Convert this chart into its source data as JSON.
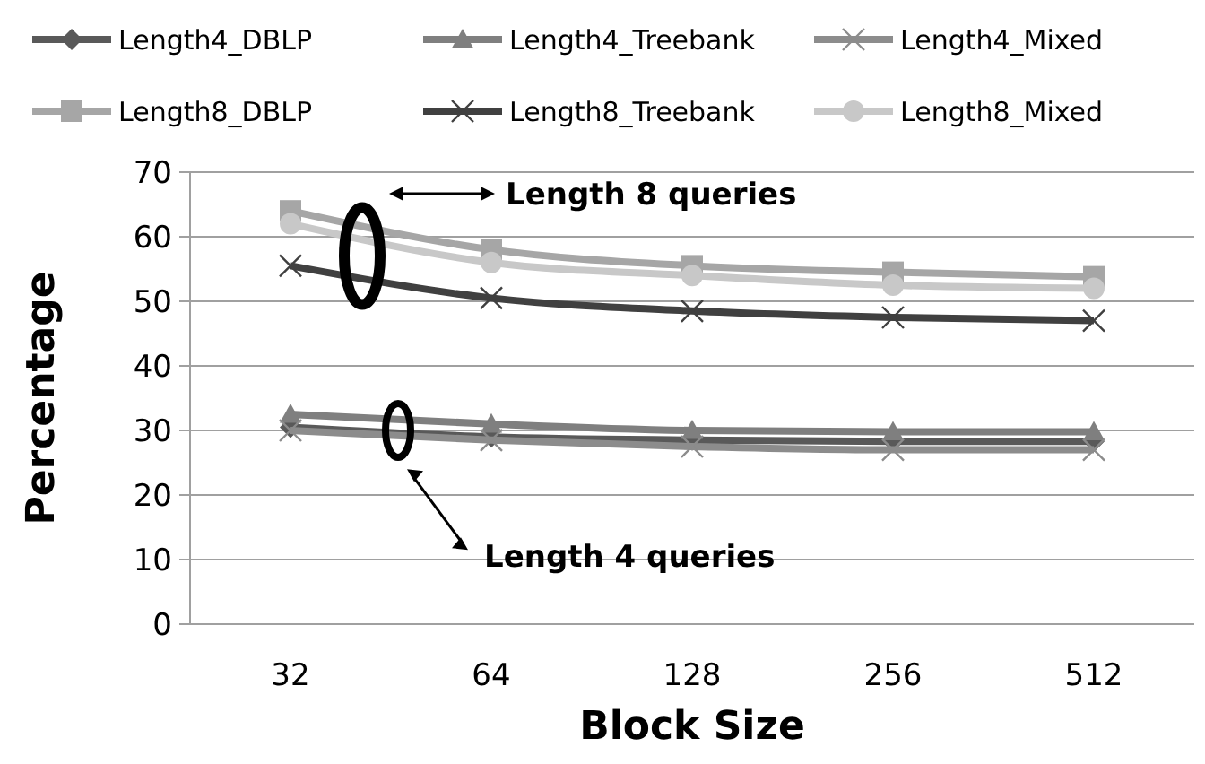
{
  "chart_data": {
    "type": "line",
    "xlabel": "Block Size",
    "ylabel": "Percentage",
    "categories": [
      "32",
      "64",
      "128",
      "256",
      "512"
    ],
    "ylim": [
      0,
      70
    ],
    "yticks": [
      0,
      10,
      20,
      30,
      40,
      50,
      60,
      70
    ],
    "grid": "y",
    "legend": "top",
    "line_style": "solid",
    "series": [
      {
        "name": "Length4_DBLP",
        "color": "#595959",
        "marker": "diamond",
        "values": [
          30.5,
          29,
          28.5,
          28.3,
          28.3
        ]
      },
      {
        "name": "Length4_Treebank",
        "color": "#7f7f7f",
        "marker": "triangle",
        "values": [
          32.5,
          31,
          30,
          29.8,
          29.8
        ]
      },
      {
        "name": "Length4_Mixed",
        "color": "#8c8c8c",
        "marker": "cross",
        "values": [
          30,
          28.5,
          27.5,
          27,
          27
        ]
      },
      {
        "name": "Length8_DBLP",
        "color": "#a6a6a6",
        "marker": "square",
        "values": [
          64,
          58,
          55.5,
          54.5,
          53.8
        ]
      },
      {
        "name": "Length8_Treebank",
        "color": "#404040",
        "marker": "cross",
        "values": [
          55.5,
          50.5,
          48.5,
          47.5,
          47
        ]
      },
      {
        "name": "Length8_Mixed",
        "color": "#c8c8c8",
        "marker": "circle",
        "values": [
          62,
          56,
          54,
          52.5,
          52
        ]
      }
    ],
    "annotations": [
      "Length 8 queries",
      "Length 4 queries"
    ]
  }
}
